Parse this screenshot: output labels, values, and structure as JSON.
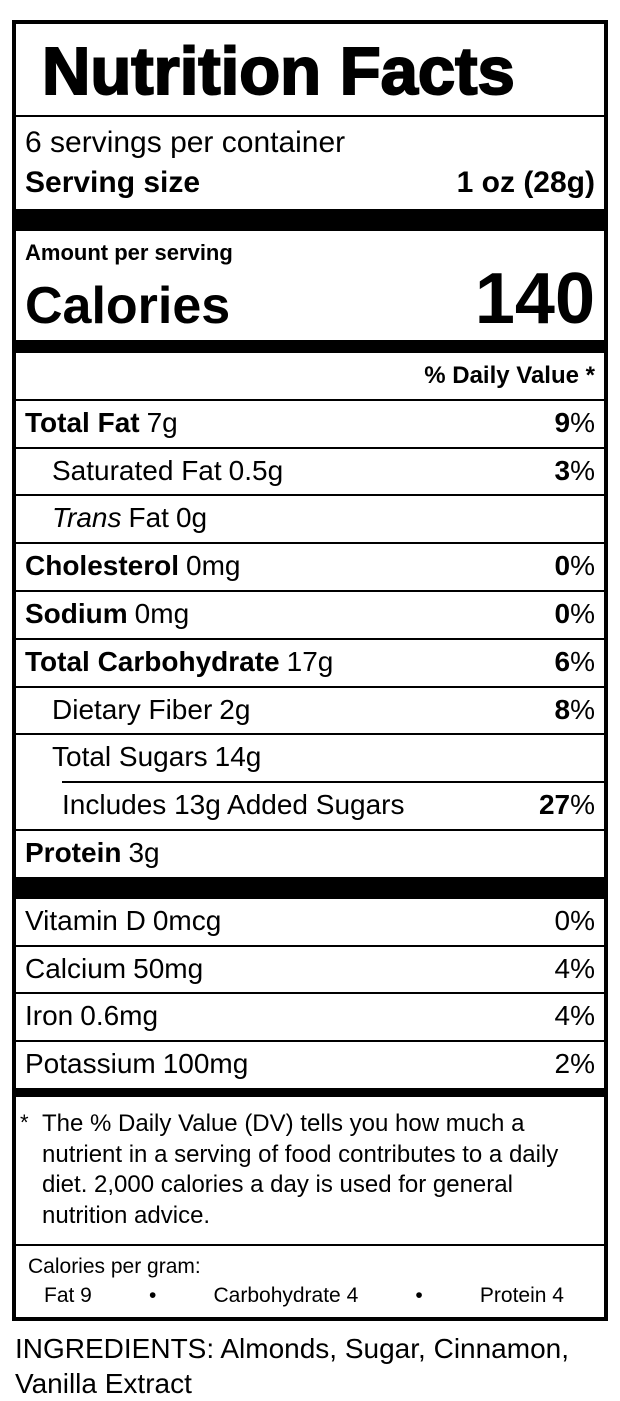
{
  "label": {
    "title": "Nutrition Facts",
    "servings_per_container": "6 servings per container",
    "serving_size_label": "Serving size",
    "serving_size_value": "1 oz (28g)",
    "amount_per_serving": "Amount per serving",
    "calories_label": "Calories",
    "calories_value": "140",
    "daily_value_header": "% Daily Value *",
    "symbols": {
      "percent": "%",
      "bullet": "•",
      "asterisk": "*"
    },
    "nutrient_rows": [
      {
        "label": "Total Fat",
        "amount": "7g",
        "dv": "9"
      },
      {
        "label": "Saturated Fat",
        "amount": "0.5g",
        "dv": "3"
      },
      {
        "label_italic": "Trans",
        "label": "Fat",
        "amount": "0g"
      },
      {
        "label": "Cholesterol",
        "amount": "0mg",
        "dv": "0"
      },
      {
        "label": "Sodium",
        "amount": "0mg",
        "dv": "0"
      },
      {
        "label": "Total Carbohydrate",
        "amount": "17g",
        "dv": "6"
      },
      {
        "label": "Dietary Fiber",
        "amount": "2g",
        "dv": "8"
      },
      {
        "label": "Total Sugars",
        "amount": "14g"
      },
      {
        "label": "Includes 13g Added Sugars",
        "dv": "27"
      },
      {
        "label": "Protein",
        "amount": "3g"
      }
    ],
    "vitamin_rows": [
      {
        "label": "Vitamin D",
        "amount": "0mcg",
        "dv": "0"
      },
      {
        "label": "Calcium",
        "amount": "50mg",
        "dv": "4"
      },
      {
        "label": "Iron",
        "amount": "0.6mg",
        "dv": "4"
      },
      {
        "label": "Potassium",
        "amount": "100mg",
        "dv": "2"
      }
    ],
    "footnote": "The % Daily Value (DV) tells you how much a nutrient in a serving of food contributes to a daily diet. 2,000 calories a day is used for general nutrition advice.",
    "calories_per_gram": {
      "heading": "Calories per gram:",
      "fat": "Fat 9",
      "carbohydrate": "Carbohydrate 4",
      "protein": "Protein 4"
    }
  },
  "ingredients": "INGREDIENTS: Almonds, Sugar, Cinnamon, Vanilla Extract",
  "colors": {
    "ink": "#000000",
    "background": "#ffffff"
  }
}
